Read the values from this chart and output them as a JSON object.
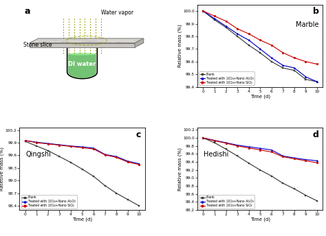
{
  "time": [
    0,
    1,
    2,
    3,
    4,
    5,
    6,
    7,
    8,
    9,
    10
  ],
  "marble": {
    "blank": [
      100.0,
      99.93,
      99.87,
      99.8,
      99.73,
      99.67,
      99.6,
      99.55,
      99.53,
      99.46,
      99.44
    ],
    "al2o3": [
      100.0,
      99.94,
      99.88,
      99.82,
      99.77,
      99.7,
      99.63,
      99.57,
      99.55,
      99.48,
      99.44
    ],
    "sio2": [
      100.0,
      99.96,
      99.92,
      99.86,
      99.82,
      99.77,
      99.73,
      99.67,
      99.63,
      99.6,
      99.58
    ]
  },
  "qingshi": {
    "blank": [
      99.93,
      99.82,
      99.71,
      99.57,
      99.43,
      99.27,
      99.1,
      98.88,
      98.7,
      98.55,
      98.4
    ],
    "al2o3": [
      99.95,
      99.91,
      99.88,
      99.85,
      99.82,
      99.8,
      99.77,
      99.62,
      99.57,
      99.46,
      99.4
    ],
    "sio2": [
      99.95,
      99.9,
      99.87,
      99.84,
      99.81,
      99.78,
      99.75,
      99.61,
      99.55,
      99.44,
      99.38
    ]
  },
  "hedishi": {
    "blank": [
      100.0,
      99.88,
      99.72,
      99.55,
      99.37,
      99.2,
      99.05,
      98.87,
      98.73,
      98.57,
      98.43
    ],
    "al2o3": [
      100.0,
      99.94,
      99.88,
      99.82,
      99.78,
      99.74,
      99.7,
      99.55,
      99.5,
      99.46,
      99.43
    ],
    "sio2": [
      100.0,
      99.93,
      99.87,
      99.8,
      99.75,
      99.7,
      99.65,
      99.53,
      99.48,
      99.43,
      99.38
    ]
  },
  "colors": {
    "blank": "#3a3a3a",
    "al2o3": "#0000cc",
    "sio2": "#cc0000"
  },
  "ylabel_b": "Relative mass (%)",
  "ylabel_c": "Ratetive mass (%)",
  "ylabel_d": "Relative mass (%)",
  "xlabel": "Time (d)",
  "ylim_b": [
    99.4,
    100.05
  ],
  "ylim_c": [
    98.3,
    100.25
  ],
  "ylim_d": [
    98.2,
    100.25
  ],
  "yticks_b": [
    99.4,
    99.5,
    99.6,
    99.7,
    99.8,
    99.9,
    100.0
  ],
  "yticks_c": [
    98.4,
    98.7,
    99.0,
    99.3,
    99.6,
    99.9,
    100.2
  ],
  "yticks_d": [
    98.2,
    98.4,
    98.6,
    98.8,
    99.0,
    99.2,
    99.4,
    99.6,
    99.8,
    100.0,
    100.2
  ],
  "legend_blank": "Blank",
  "legend_al2o3": "Treated with 101s+Nano Al₂O₃",
  "legend_sio2": "Treated with 101s+Nano SiO₂"
}
